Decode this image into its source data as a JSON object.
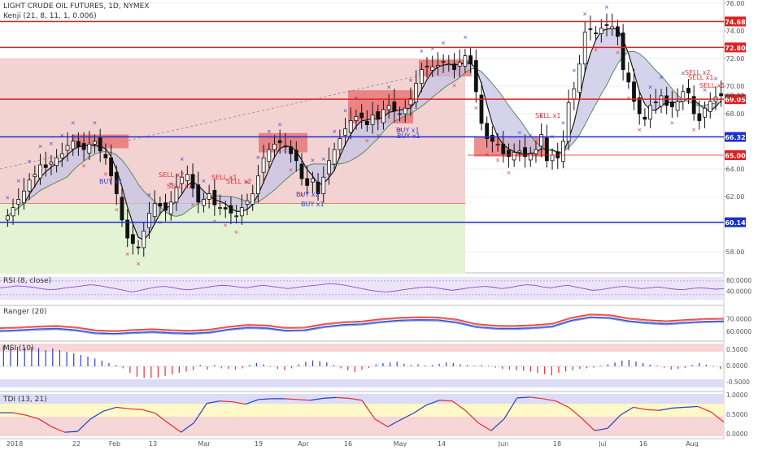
{
  "header": {
    "title": "LIGHT CRUDE OIL FUTURES, 1D, NYMEX",
    "indicator": "Kenji (21, 8, 11, 1, 0.006)"
  },
  "panes": {
    "rsi": {
      "label": "RSI (8, close)",
      "ticks": [
        "80.0000",
        "40.0000"
      ]
    },
    "ranger": {
      "label": "Ranger (20)",
      "ticks": [
        "70.0000",
        "60.0000"
      ]
    },
    "msi": {
      "label": "MSI (10)",
      "ticks": [
        "0.5000",
        "0.0000",
        "-0.5000"
      ]
    },
    "tdi": {
      "label": "TDI (13, 21)",
      "ticks": [
        "1.0000",
        "0.5000",
        "0.0000"
      ]
    }
  },
  "chart_data": {
    "type": "candlestick",
    "ylim": [
      55.5,
      76.5
    ],
    "y_ticks": [
      "76.00",
      "74.00",
      "72.00",
      "70.00",
      "68.00",
      "64.00",
      "62.00",
      "58.00"
    ],
    "x_ticks": [
      "2018",
      "22",
      "Feb",
      "13",
      "Mar",
      "19",
      "Apr",
      "16",
      "May",
      "14",
      "Jun",
      "18",
      "Jul",
      "16",
      "Aug"
    ],
    "levels": [
      {
        "value": 74.68,
        "label": "74.68",
        "color": "#e02020"
      },
      {
        "value": 72.8,
        "label": "72.80",
        "color": "#e02020"
      },
      {
        "value": 69.05,
        "label": "69.05",
        "color": "#e02020"
      },
      {
        "value": 66.32,
        "label": "66.32",
        "color": "#1a2fd0"
      },
      {
        "value": 60.14,
        "label": "60.14",
        "color": "#1a2fd0"
      },
      {
        "value": 65.0,
        "label": "65.00",
        "color": "#e02020"
      }
    ],
    "last_price": {
      "value": 69.32,
      "label": "69.32"
    },
    "signals": [
      {
        "text": "BUY x1",
        "type": "buy"
      },
      {
        "text": "SELL x2",
        "type": "sell"
      },
      {
        "text": "SELL x1",
        "type": "sell"
      },
      {
        "text": "SELL x1",
        "type": "sell"
      },
      {
        "text": "SELL x2",
        "type": "sell"
      },
      {
        "text": "BUY x2",
        "type": "buy"
      },
      {
        "text": "BUY x1",
        "type": "buy"
      },
      {
        "text": "BUY x1",
        "type": "buy"
      },
      {
        "text": "BUY x1",
        "type": "buy"
      },
      {
        "text": "SELL x1",
        "type": "sell"
      },
      {
        "text": "SELL x2",
        "type": "sell"
      },
      {
        "text": "SELL x1",
        "type": "sell"
      },
      {
        "text": "SELL x1",
        "type": "sell"
      }
    ],
    "closes": [
      60.6,
      61.2,
      61.8,
      62.4,
      63.2,
      63.6,
      64.3,
      64.1,
      64.5,
      64.8,
      65.1,
      65.7,
      66.0,
      65.6,
      65.4,
      65.8,
      66.0,
      65.3,
      64.8,
      63.5,
      62.2,
      60.3,
      59.0,
      58.6,
      58.3,
      59.5,
      60.8,
      61.5,
      61.3,
      61.0,
      61.6,
      62.7,
      63.4,
      63.6,
      62.6,
      61.6,
      61.8,
      62.2,
      61.4,
      61.2,
      61.1,
      60.8,
      60.6,
      61.2,
      61.7,
      62.2,
      63.5,
      64.8,
      65.4,
      65.8,
      65.9,
      65.6,
      65.1,
      64.6,
      63.3,
      62.8,
      63.3,
      62.2,
      63.4,
      64.6,
      65.4,
      66.2,
      66.9,
      67.5,
      67.8,
      67.7,
      67.2,
      67.9,
      67.6,
      68.3,
      68.6,
      68.2,
      68.0,
      68.4,
      69.1,
      70.2,
      71.2,
      71.4,
      71.4,
      71.5,
      71.8,
      71.6,
      71.2,
      71.7,
      72.2,
      71.6,
      69.6,
      67.3,
      66.2,
      66.0,
      65.8,
      65.1,
      64.9,
      65.2,
      65.3,
      64.9,
      65.1,
      65.4,
      66.5,
      64.6,
      65.0,
      64.8,
      66.0,
      68.8,
      69.8,
      71.6,
      73.9,
      74.1,
      73.8,
      74.2,
      74.4,
      74.3,
      73.6,
      71.2,
      70.3,
      68.9,
      68.0,
      67.6,
      68.6,
      68.8,
      69.3,
      68.6,
      68.5,
      68.9,
      69.6,
      69.5,
      68.0,
      67.5,
      68.4,
      68.9,
      69.2,
      69.3
    ],
    "rsi": [
      55,
      58,
      62,
      60,
      57,
      52,
      48,
      50,
      55,
      58,
      62,
      66,
      63,
      58,
      52,
      46,
      40,
      45,
      52,
      58,
      60,
      56,
      50,
      48,
      52,
      56,
      61,
      64,
      62,
      58,
      55,
      60,
      64,
      60,
      56,
      52,
      56,
      60,
      63,
      66,
      70,
      68,
      64,
      58,
      52,
      46,
      42,
      40,
      43,
      48,
      52,
      56,
      58,
      55,
      50,
      46,
      50,
      55,
      58,
      60,
      57,
      52,
      56,
      62,
      66,
      64,
      58,
      55,
      60,
      64,
      58,
      52,
      46,
      48,
      53,
      58,
      60,
      56,
      52,
      55,
      58,
      54,
      50,
      48,
      52,
      55,
      53,
      50,
      52
    ],
    "ranger": {
      "red": [
        63.2,
        63.8,
        64.6,
        65.0,
        63.8,
        61.5,
        61.0,
        61.8,
        62.4,
        61.6,
        61.2,
        62.0,
        64.4,
        65.8,
        65.4,
        63.5,
        63.8,
        66.4,
        68.0,
        68.6,
        70.4,
        71.6,
        72.0,
        71.8,
        70.0,
        66.5,
        65.2,
        65.0,
        65.6,
        66.8,
        71.5,
        74.2,
        73.6,
        71.0,
        69.6,
        68.8,
        69.8,
        70.6,
        70.9
      ],
      "blue": [
        61.0,
        61.6,
        62.4,
        62.8,
        61.6,
        59.3,
        58.8,
        59.6,
        60.2,
        59.4,
        59.0,
        59.8,
        62.2,
        63.6,
        63.2,
        61.3,
        61.6,
        64.2,
        65.8,
        66.4,
        68.2,
        69.4,
        69.8,
        69.6,
        67.8,
        64.3,
        63.0,
        62.8,
        63.4,
        64.6,
        69.3,
        72.0,
        71.4,
        68.8,
        67.4,
        66.6,
        67.6,
        68.4,
        68.7
      ]
    },
    "msi": [
      0.64,
      0.58,
      0.6,
      0.57,
      0.59,
      0.56,
      0.5,
      0.55,
      0.5,
      0.45,
      0.4,
      0.35,
      0.3,
      0.24,
      0.18,
      0.1,
      0.04,
      -0.06,
      -0.2,
      -0.32,
      -0.35,
      -0.36,
      -0.34,
      -0.3,
      -0.25,
      -0.2,
      -0.16,
      -0.12,
      0.04,
      -0.1,
      0.04,
      -0.06,
      -0.08,
      -0.1,
      -0.06,
      0.04,
      0.1,
      0.06,
      -0.02,
      -0.08,
      -0.12,
      -0.06,
      0.06,
      0.14,
      0.18,
      0.16,
      0.12,
      0.04,
      -0.06,
      -0.12,
      -0.18,
      -0.1,
      -0.05,
      0.06,
      0.1,
      0.12,
      0.14,
      0.08,
      0.04,
      0.06,
      0.03,
      0.04,
      0.08,
      0.12,
      0.1,
      0.06,
      0.04,
      0.02,
      0.04,
      0.02,
      -0.04,
      -0.08,
      -0.1,
      -0.12,
      -0.14,
      -0.16,
      -0.2,
      -0.24,
      -0.28,
      -0.2,
      -0.16,
      -0.12,
      -0.08,
      -0.06,
      -0.04,
      0.02,
      0.06,
      0.12,
      0.18,
      0.2,
      0.15,
      0.1,
      0.05,
      0.02,
      -0.04,
      -0.1,
      -0.08,
      -0.05,
      0.04,
      0.1,
      0.05,
      -0.02,
      -0.08
    ],
    "tdi": [
      0.56,
      0.56,
      0.5,
      0.4,
      0.2,
      0.06,
      0.08,
      0.4,
      0.6,
      0.7,
      0.66,
      0.64,
      0.55,
      0.3,
      0.06,
      0.3,
      0.8,
      0.86,
      0.84,
      0.78,
      0.9,
      0.92,
      0.92,
      0.9,
      0.88,
      0.93,
      0.95,
      0.93,
      0.88,
      0.4,
      0.2,
      0.38,
      0.55,
      0.76,
      0.88,
      0.86,
      0.62,
      0.3,
      0.1,
      0.4,
      0.94,
      0.96,
      0.92,
      0.86,
      0.7,
      0.42,
      0.1,
      0.16,
      0.5,
      0.7,
      0.64,
      0.62,
      0.68,
      0.7,
      0.72,
      0.58,
      0.32
    ]
  }
}
